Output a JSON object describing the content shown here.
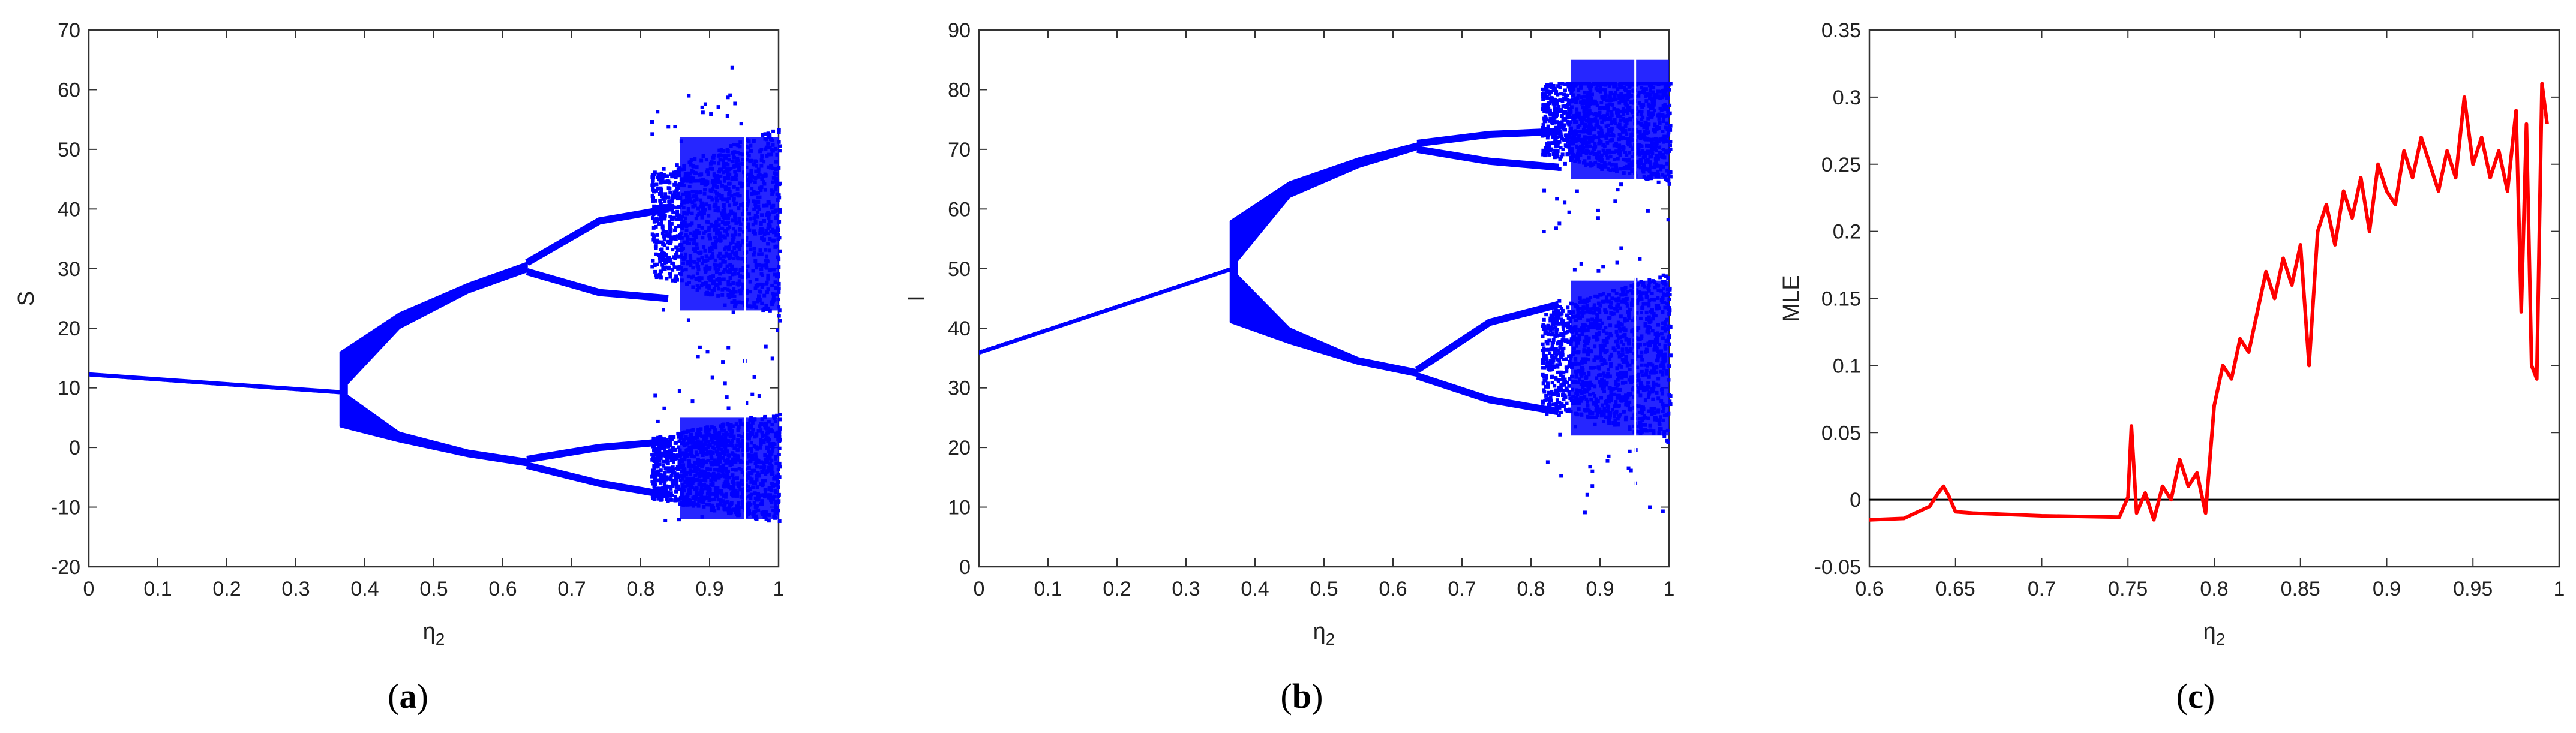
{
  "chart_data": [
    {
      "type": "scatter",
      "panel_label": "(a)",
      "ylabel": "S",
      "xlabel_base": "η",
      "xlabel_sub": "2",
      "xlim": [
        0,
        1
      ],
      "ylim": [
        -20,
        70
      ],
      "xticks": [
        0,
        0.1,
        0.2,
        0.3,
        0.4,
        0.5,
        0.6,
        0.7,
        0.8,
        0.9,
        1
      ],
      "xtick_labels": [
        "0",
        "0.1",
        "0.2",
        "0.3",
        "0.4",
        "0.5",
        "0.6",
        "0.7",
        "0.8",
        "0.9",
        "1"
      ],
      "yticks": [
        -20,
        -10,
        0,
        10,
        20,
        30,
        40,
        50,
        60,
        70
      ],
      "ytick_labels": [
        "-20",
        "-10",
        "0",
        "10",
        "20",
        "30",
        "40",
        "50",
        "60",
        "70"
      ],
      "color": "#0000ff",
      "branches": {
        "fixed_line": {
          "x": [
            0,
            0.365
          ],
          "y": [
            12.3,
            9.3
          ]
        },
        "upper": {
          "x": [
            0.365,
            0.45,
            0.55,
            0.635
          ],
          "y_top": [
            16,
            22.5,
            27.5,
            31
          ],
          "y_bot": [
            9.5,
            20,
            26,
            29.5
          ]
        },
        "lower": {
          "x": [
            0.365,
            0.45,
            0.55,
            0.635
          ],
          "y_top": [
            9.5,
            2.5,
            -0.5,
            -2
          ],
          "y_bot": [
            3.5,
            1,
            -1.5,
            -3
          ]
        },
        "upper_loop": {
          "x": [
            0.635,
            0.74,
            0.84
          ],
          "outer_top": [
            31,
            38,
            40
          ],
          "outer_bot": [
            29.5,
            26,
            25
          ]
        },
        "lower_loop": {
          "x": [
            0.635,
            0.74,
            0.84
          ],
          "outer_top": [
            -2,
            0,
            1
          ],
          "outer_bot": [
            -3,
            -6,
            -8
          ]
        },
        "chaos": {
          "x": [
            0.84,
            1
          ],
          "y_min": -13,
          "y_max": 65
        }
      }
    },
    {
      "type": "scatter",
      "panel_label": "(b)",
      "ylabel": "I",
      "xlabel_base": "η",
      "xlabel_sub": "2",
      "xlim": [
        0,
        1
      ],
      "ylim": [
        0,
        90
      ],
      "xticks": [
        0,
        0.1,
        0.2,
        0.3,
        0.4,
        0.5,
        0.6,
        0.7,
        0.8,
        0.9,
        1
      ],
      "xtick_labels": [
        "0",
        "0.1",
        "0.2",
        "0.3",
        "0.4",
        "0.5",
        "0.6",
        "0.7",
        "0.8",
        "0.9",
        "1"
      ],
      "yticks": [
        0,
        10,
        20,
        30,
        40,
        50,
        60,
        70,
        80,
        90
      ],
      "ytick_labels": [
        "0",
        "10",
        "20",
        "30",
        "40",
        "50",
        "60",
        "70",
        "80",
        "90"
      ],
      "color": "#0000ff",
      "branches": {
        "fixed_line": {
          "x": [
            0,
            0.365
          ],
          "y": [
            36,
            50
          ]
        },
        "upper": {
          "x": [
            0.365,
            0.45,
            0.55,
            0.635
          ],
          "y_top": [
            58,
            64.5,
            68.5,
            71
          ],
          "y_bot": [
            50,
            62,
            67,
            70
          ]
        },
        "lower": {
          "x": [
            0.365,
            0.45,
            0.55,
            0.635
          ],
          "y_top": [
            50,
            40,
            35,
            33
          ],
          "y_bot": [
            41,
            37.5,
            34,
            32
          ]
        },
        "upper_loop": {
          "x": [
            0.635,
            0.74,
            0.84
          ],
          "outer_top": [
            71,
            72.5,
            73
          ],
          "outer_bot": [
            70,
            68,
            67
          ]
        },
        "lower_loop": {
          "x": [
            0.635,
            0.74,
            0.84
          ],
          "outer_top": [
            33,
            41,
            44
          ],
          "outer_bot": [
            32,
            28,
            26
          ]
        },
        "chaos": {
          "x": [
            0.84,
            1
          ],
          "y_min": 9,
          "y_max": 81
        }
      }
    },
    {
      "type": "line",
      "panel_label": "(c)",
      "ylabel": "MLE",
      "xlabel_base": "η",
      "xlabel_sub": "2",
      "xlim": [
        0.6,
        1
      ],
      "ylim": [
        -0.05,
        0.35
      ],
      "xticks": [
        0.6,
        0.65,
        0.7,
        0.75,
        0.8,
        0.85,
        0.9,
        0.95,
        1
      ],
      "xtick_labels": [
        "0.6",
        "0.65",
        "0.7",
        "0.75",
        "0.8",
        "0.85",
        "0.9",
        "0.95",
        "1"
      ],
      "yticks": [
        -0.05,
        0,
        0.05,
        0.1,
        0.15,
        0.2,
        0.25,
        0.3,
        0.35
      ],
      "ytick_labels": [
        "-0.05",
        "0",
        "0.05",
        "0.1",
        "0.15",
        "0.2",
        "0.25",
        "0.3",
        "0.35"
      ],
      "line_color": "#ff0000",
      "zero_line": {
        "y": 0,
        "color": "#000000"
      },
      "series": [
        {
          "x": [
            0.6,
            0.62,
            0.635,
            0.64,
            0.643,
            0.646,
            0.65,
            0.66,
            0.7,
            0.745,
            0.75,
            0.752,
            0.755,
            0.76,
            0.765,
            0.77,
            0.775,
            0.78,
            0.785,
            0.79,
            0.795,
            0.8,
            0.805,
            0.81,
            0.815,
            0.82,
            0.825,
            0.83,
            0.835,
            0.84,
            0.845,
            0.85,
            0.855,
            0.86,
            0.865,
            0.87,
            0.875,
            0.88,
            0.885,
            0.89,
            0.895,
            0.9,
            0.905,
            0.91,
            0.915,
            0.92,
            0.925,
            0.93,
            0.935,
            0.94,
            0.945,
            0.95,
            0.955,
            0.96,
            0.965,
            0.97,
            0.975,
            0.978,
            0.981,
            0.984,
            0.987,
            0.99,
            0.993
          ],
          "y": [
            -0.015,
            -0.014,
            -0.005,
            0.005,
            0.01,
            0.003,
            -0.009,
            -0.01,
            -0.012,
            -0.013,
            0.002,
            0.055,
            -0.01,
            0.005,
            -0.015,
            0.01,
            0.0,
            0.03,
            0.01,
            0.02,
            -0.01,
            0.07,
            0.1,
            0.09,
            0.12,
            0.11,
            0.14,
            0.17,
            0.15,
            0.18,
            0.16,
            0.19,
            0.1,
            0.2,
            0.22,
            0.19,
            0.23,
            0.21,
            0.24,
            0.2,
            0.25,
            0.23,
            0.22,
            0.26,
            0.24,
            0.27,
            0.25,
            0.23,
            0.26,
            0.24,
            0.3,
            0.25,
            0.27,
            0.24,
            0.26,
            0.23,
            0.29,
            0.14,
            0.28,
            0.1,
            0.09,
            0.31,
            0.28
          ]
        }
      ]
    }
  ]
}
